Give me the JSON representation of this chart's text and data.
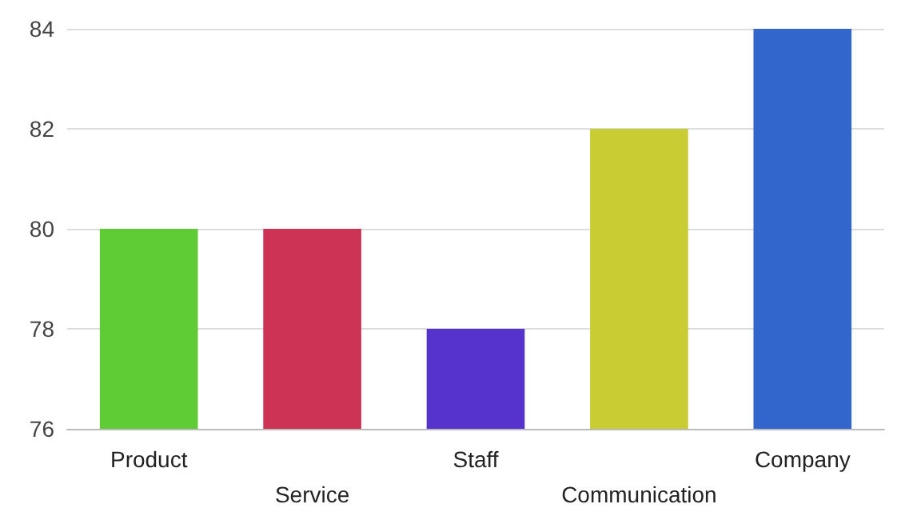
{
  "chart_data": {
    "type": "bar",
    "categories": [
      "Product",
      "Service",
      "Staff",
      "Communication",
      "Company"
    ],
    "values": [
      80,
      80,
      78,
      82,
      84
    ],
    "colors": [
      "#5fcb35",
      "#cc3355",
      "#5533cc",
      "#c9cc33",
      "#3366cc"
    ],
    "ylim": [
      76,
      84
    ],
    "yticks": [
      76,
      78,
      80,
      82,
      84
    ],
    "grid": "y"
  }
}
